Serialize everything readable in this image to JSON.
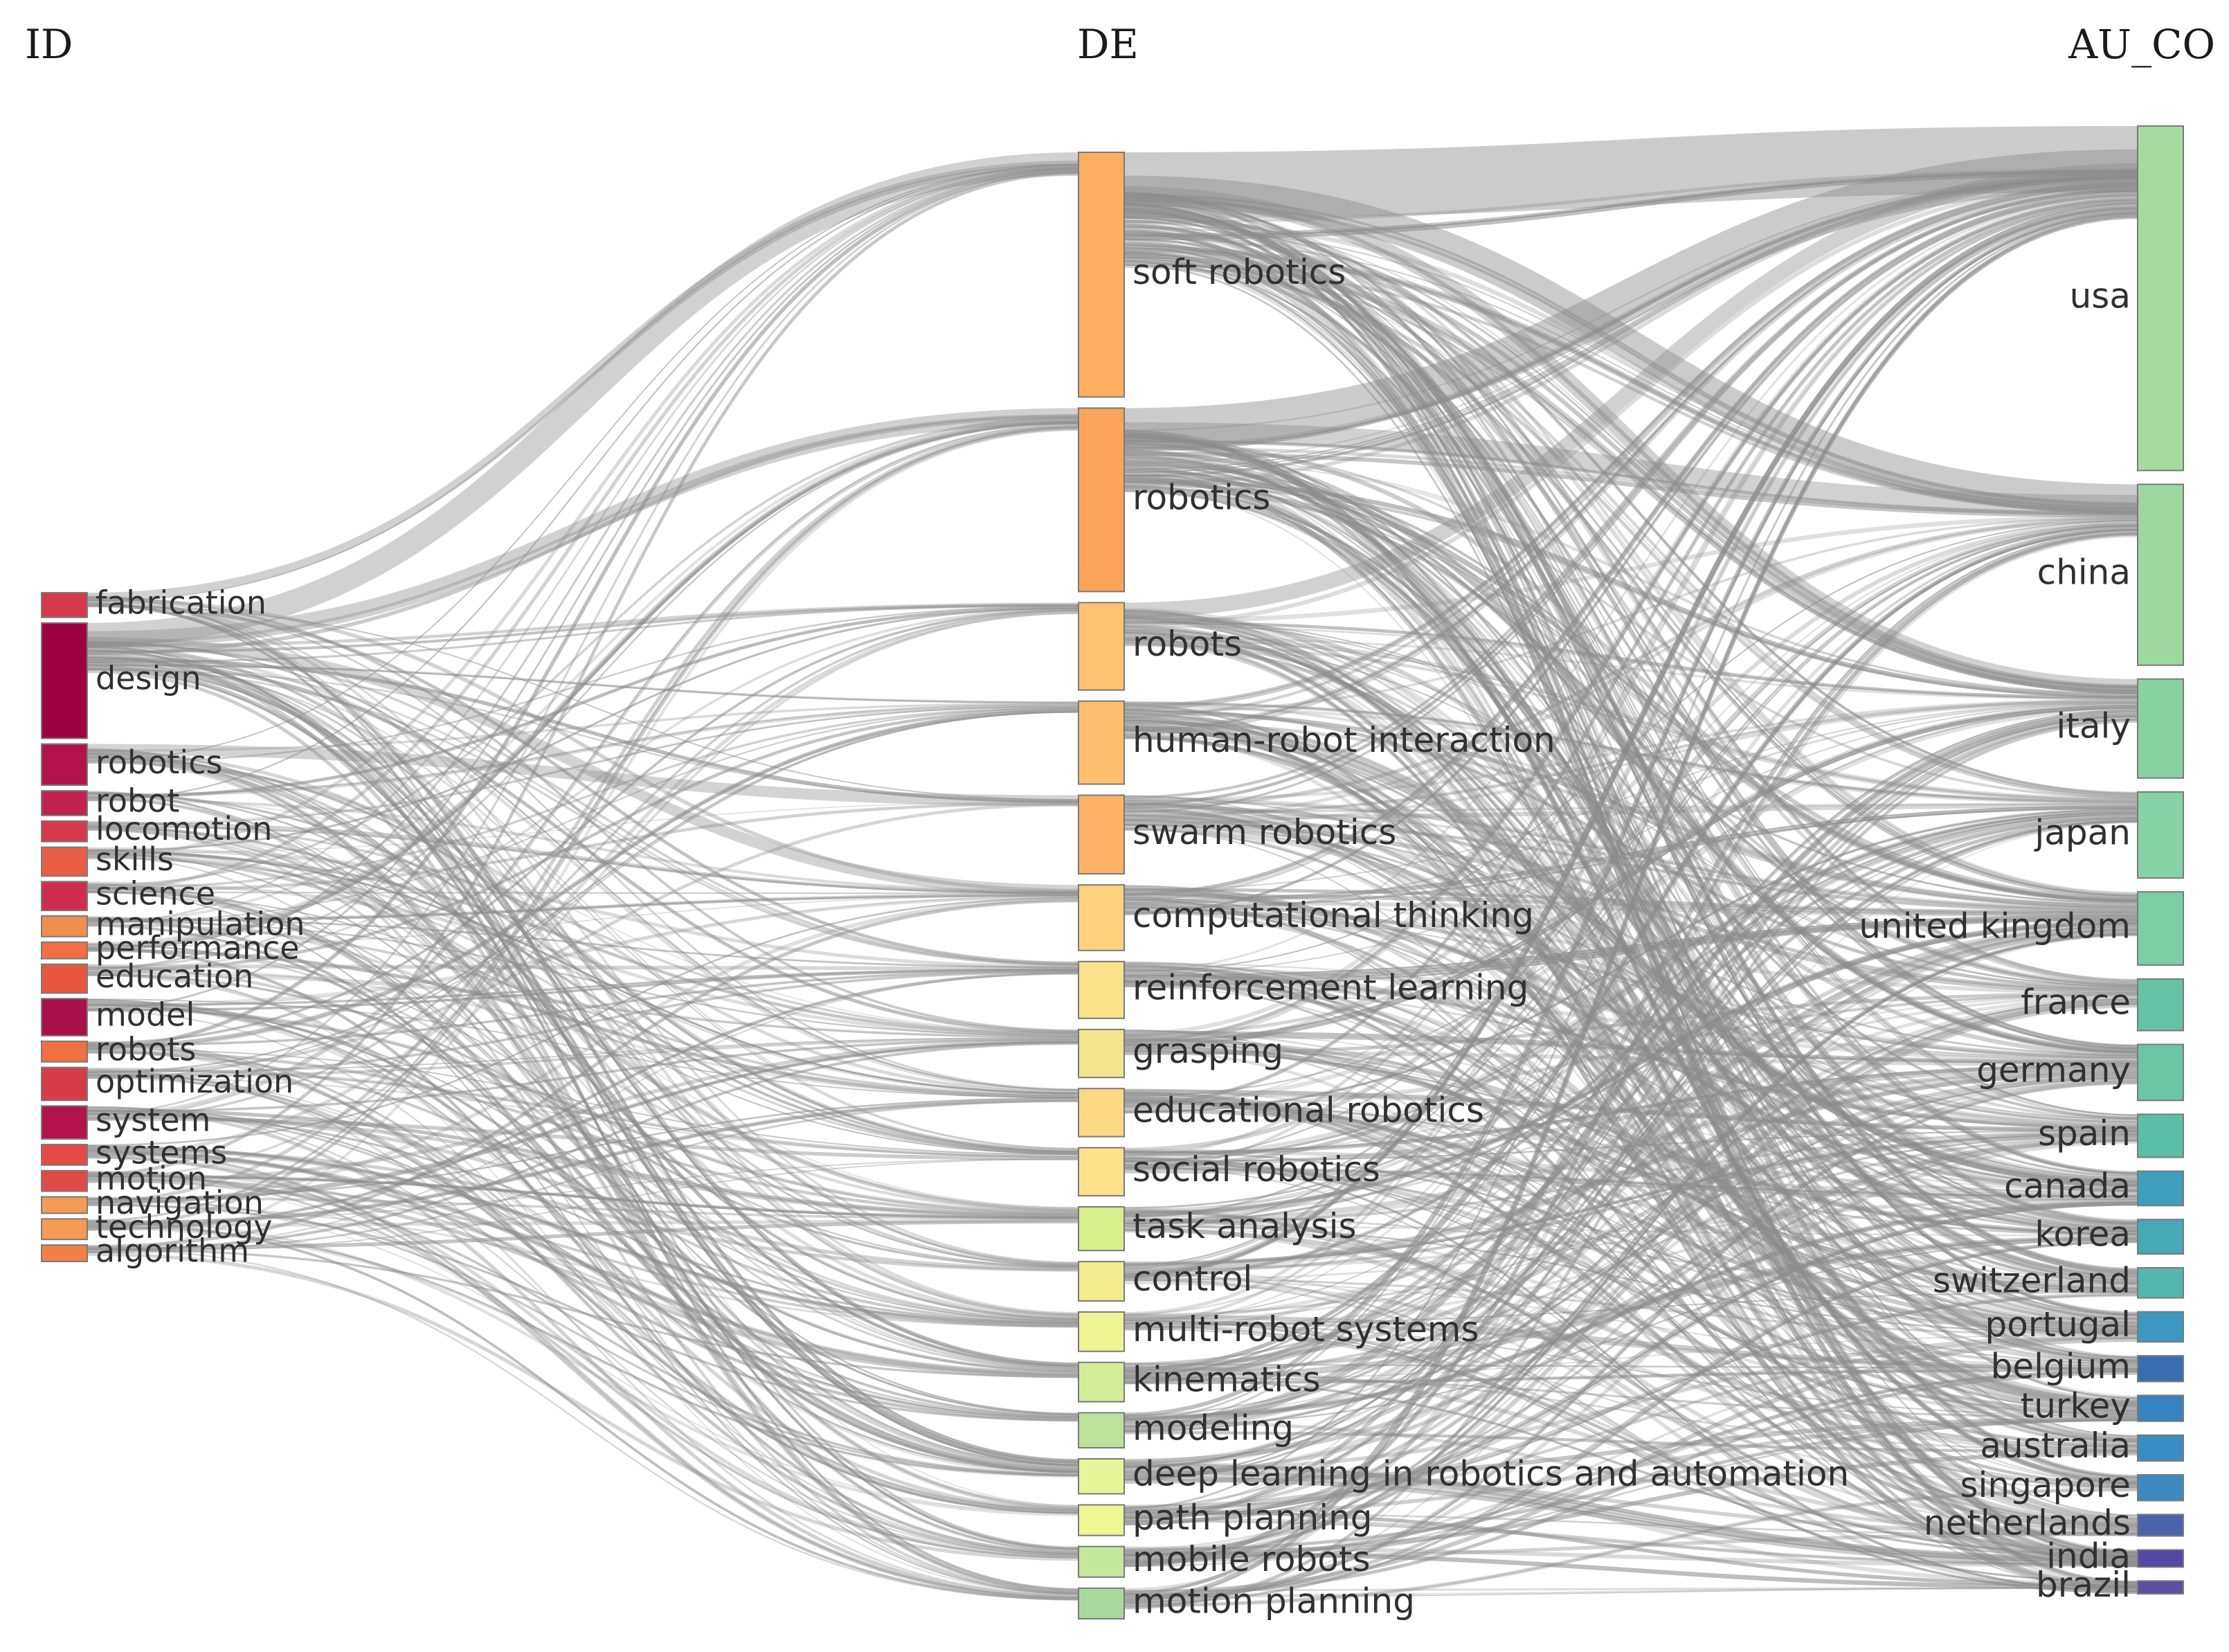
{
  "columns": [
    {
      "key": "ID",
      "title": "ID"
    },
    {
      "key": "DE",
      "title": "DE"
    },
    {
      "key": "AU_CO",
      "title": "AU_CO"
    }
  ],
  "nodes": {
    "ID": [
      {
        "name": "fabrication",
        "weight": 3,
        "color": "#d5394b"
      },
      {
        "name": "design",
        "weight": 14,
        "color": "#9e0142"
      },
      {
        "name": "robotics",
        "weight": 5,
        "color": "#b3134c"
      },
      {
        "name": "robot",
        "weight": 3,
        "color": "#c22250"
      },
      {
        "name": "locomotion",
        "weight": 2.5,
        "color": "#d5394b"
      },
      {
        "name": "skills",
        "weight": 3.5,
        "color": "#e85d44"
      },
      {
        "name": "science",
        "weight": 3.5,
        "color": "#cf2d4f"
      },
      {
        "name": "manipulation",
        "weight": 2.5,
        "color": "#f08d4f"
      },
      {
        "name": "performance",
        "weight": 2,
        "color": "#f46d43"
      },
      {
        "name": "education",
        "weight": 3.5,
        "color": "#e8563f"
      },
      {
        "name": "model",
        "weight": 4.5,
        "color": "#a8104a"
      },
      {
        "name": "robots",
        "weight": 2.5,
        "color": "#f07040"
      },
      {
        "name": "optimization",
        "weight": 4,
        "color": "#d73c49"
      },
      {
        "name": "system",
        "weight": 4,
        "color": "#b3134c"
      },
      {
        "name": "systems",
        "weight": 2.5,
        "color": "#e64a47"
      },
      {
        "name": "motion",
        "weight": 2.5,
        "color": "#e04a47"
      },
      {
        "name": "navigation",
        "weight": 2,
        "color": "#f39b55"
      },
      {
        "name": "technology",
        "weight": 2.5,
        "color": "#f49a52"
      },
      {
        "name": "algorithm",
        "weight": 2,
        "color": "#f08046"
      }
    ],
    "DE": [
      {
        "name": "soft robotics",
        "weight": 28,
        "color": "#fdae61"
      },
      {
        "name": "robotics",
        "weight": 21,
        "color": "#fba55a"
      },
      {
        "name": "robots",
        "weight": 10,
        "color": "#fdc370"
      },
      {
        "name": "human-robot interaction",
        "weight": 9.5,
        "color": "#fdbf6f"
      },
      {
        "name": "swarm robotics",
        "weight": 9,
        "color": "#fcb367"
      },
      {
        "name": "computational thinking",
        "weight": 7.5,
        "color": "#fed27e"
      },
      {
        "name": "reinforcement learning",
        "weight": 6.5,
        "color": "#fbe28a"
      },
      {
        "name": "grasping",
        "weight": 5.5,
        "color": "#f3e58d"
      },
      {
        "name": "educational robotics",
        "weight": 5.5,
        "color": "#fdd985"
      },
      {
        "name": "social robotics",
        "weight": 5.5,
        "color": "#fde08a"
      },
      {
        "name": "task analysis",
        "weight": 5,
        "color": "#d9ef8b"
      },
      {
        "name": "control",
        "weight": 4.5,
        "color": "#f3ec8f"
      },
      {
        "name": "multi-robot systems",
        "weight": 4.5,
        "color": "#eef394"
      },
      {
        "name": "kinematics",
        "weight": 4.5,
        "color": "#d3ec9a"
      },
      {
        "name": "modeling",
        "weight": 4,
        "color": "#bde19a"
      },
      {
        "name": "deep learning in robotics and automation",
        "weight": 4,
        "color": "#e7f59a"
      },
      {
        "name": "path planning",
        "weight": 3.5,
        "color": "#eef794"
      },
      {
        "name": "mobile robots",
        "weight": 3.5,
        "color": "#c5e79e"
      },
      {
        "name": "motion planning",
        "weight": 3.5,
        "color": "#a9d99a"
      }
    ],
    "AU_CO": [
      {
        "name": "usa",
        "weight": 40,
        "color": "#a6dba0"
      },
      {
        "name": "china",
        "weight": 21,
        "color": "#9dd89e"
      },
      {
        "name": "italy",
        "weight": 11.5,
        "color": "#88d2a2"
      },
      {
        "name": "japan",
        "weight": 10,
        "color": "#84d2a5"
      },
      {
        "name": "united kingdom",
        "weight": 8.5,
        "color": "#7ccfa4"
      },
      {
        "name": "france",
        "weight": 6,
        "color": "#66c2a5"
      },
      {
        "name": "germany",
        "weight": 6.5,
        "color": "#6cc5a4"
      },
      {
        "name": "spain",
        "weight": 5,
        "color": "#5cbea6"
      },
      {
        "name": "canada",
        "weight": 4,
        "color": "#3e9fbc"
      },
      {
        "name": "korea",
        "weight": 4,
        "color": "#47a8b8"
      },
      {
        "name": "switzerland",
        "weight": 3.5,
        "color": "#55b6ad"
      },
      {
        "name": "portugal",
        "weight": 3.5,
        "color": "#3d98c0"
      },
      {
        "name": "belgium",
        "weight": 3,
        "color": "#3a6db0"
      },
      {
        "name": "turkey",
        "weight": 3,
        "color": "#3784c0"
      },
      {
        "name": "australia",
        "weight": 3,
        "color": "#3a8dc2"
      },
      {
        "name": "singapore",
        "weight": 3,
        "color": "#3c8ac0"
      },
      {
        "name": "netherlands",
        "weight": 2.5,
        "color": "#4b63ad"
      },
      {
        "name": "india",
        "weight": 2,
        "color": "#5548a2"
      },
      {
        "name": "brazil",
        "weight": 1.5,
        "color": "#5e4fa2"
      }
    ]
  },
  "link_color": "#8c8c8c"
}
